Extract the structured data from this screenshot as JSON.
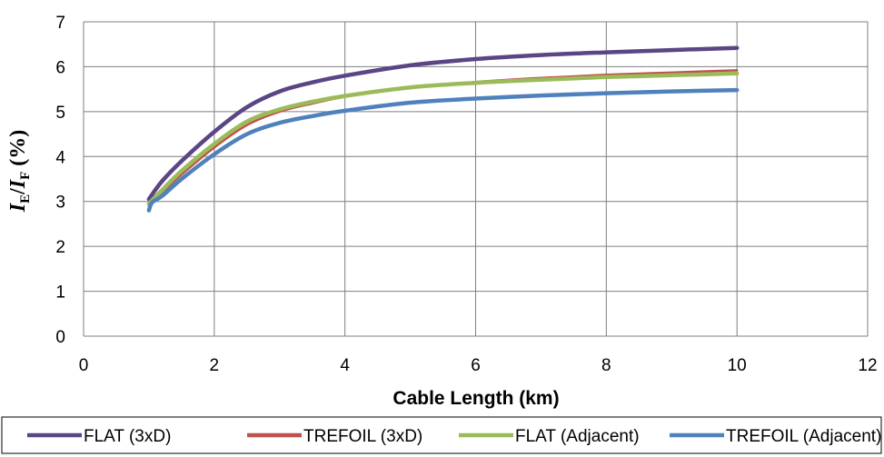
{
  "chart_data": {
    "type": "line",
    "title": "",
    "xlabel": "Cable Length (km)",
    "ylabel": {
      "main_1": "I",
      "sub_1": "E",
      "slash": "/",
      "main_2": "I",
      "sub_2": "F",
      "unit": " (%)"
    },
    "xlim": [
      0,
      12
    ],
    "ylim": [
      0,
      7
    ],
    "xticks": [
      "0",
      "2",
      "4",
      "6",
      "8",
      "10",
      "12"
    ],
    "yticks": [
      "0",
      "1",
      "2",
      "3",
      "4",
      "5",
      "6",
      "7"
    ],
    "grid": true,
    "legend_position": "bottom",
    "series": [
      {
        "name": "FLAT (3xD)",
        "color": "#5b4585",
        "x": [
          1,
          1.2,
          1.5,
          2,
          2.5,
          3,
          3.5,
          4,
          5,
          6,
          7,
          8,
          9,
          10
        ],
        "y": [
          3.05,
          3.45,
          3.9,
          4.55,
          5.1,
          5.45,
          5.65,
          5.8,
          6.03,
          6.17,
          6.26,
          6.32,
          6.37,
          6.42
        ]
      },
      {
        "name": "TREFOIL (3xD)",
        "color": "#c0504d",
        "x": [
          1,
          1.2,
          1.5,
          2,
          2.5,
          3,
          3.5,
          4,
          5,
          6,
          7,
          8,
          9,
          10
        ],
        "y": [
          2.9,
          3.2,
          3.6,
          4.2,
          4.7,
          5.0,
          5.18,
          5.33,
          5.54,
          5.66,
          5.75,
          5.82,
          5.87,
          5.92
        ]
      },
      {
        "name": "FLAT (Adjacent)",
        "color": "#9bbb59",
        "x": [
          1,
          1.2,
          1.5,
          2,
          2.5,
          3,
          3.5,
          4,
          5,
          6,
          7,
          8,
          9,
          10
        ],
        "y": [
          2.95,
          3.25,
          3.68,
          4.28,
          4.78,
          5.05,
          5.22,
          5.35,
          5.54,
          5.64,
          5.71,
          5.77,
          5.81,
          5.85
        ]
      },
      {
        "name": "TREFOIL (Adjacent)",
        "color": "#4f81bd",
        "x": [
          1,
          1.05,
          1.2,
          1.5,
          2,
          2.5,
          3,
          3.5,
          4,
          5,
          6,
          7,
          8,
          9,
          10
        ],
        "y": [
          2.8,
          2.98,
          3.12,
          3.5,
          4.05,
          4.5,
          4.75,
          4.9,
          5.02,
          5.2,
          5.29,
          5.36,
          5.41,
          5.45,
          5.48
        ]
      }
    ]
  }
}
